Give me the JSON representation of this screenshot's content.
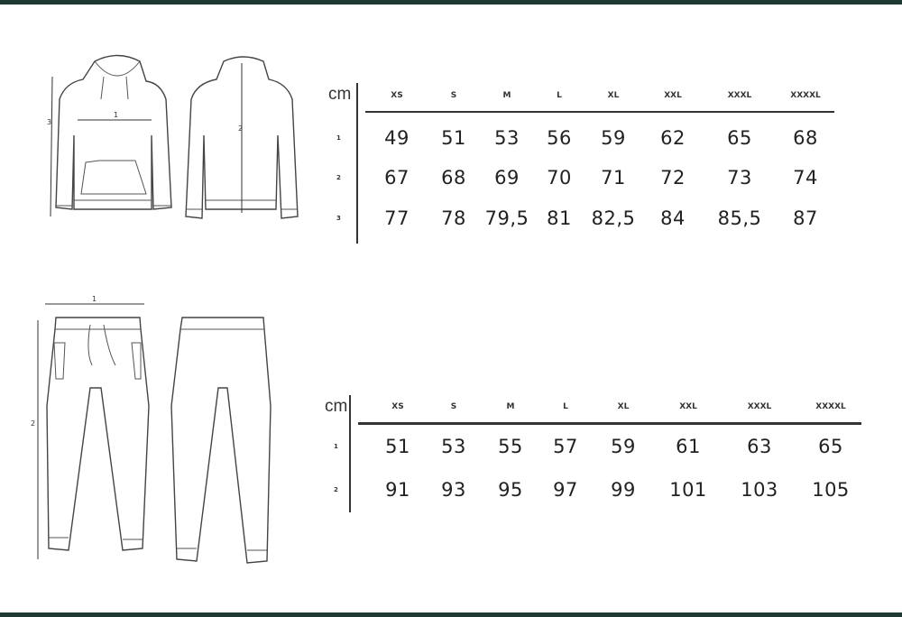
{
  "hoodie_chart": {
    "unit": "cm",
    "sizes": [
      "XS",
      "S",
      "M",
      "L",
      "XL",
      "XXL",
      "XXXL",
      "XXXXL"
    ],
    "rows": [
      {
        "label": "1",
        "values": [
          "49",
          "51",
          "53",
          "56",
          "59",
          "62",
          "65",
          "68"
        ]
      },
      {
        "label": "2",
        "values": [
          "67",
          "68",
          "69",
          "70",
          "71",
          "72",
          "73",
          "74"
        ]
      },
      {
        "label": "3",
        "values": [
          "77",
          "78",
          "79,5",
          "81",
          "82,5",
          "84",
          "85,5",
          "87"
        ]
      }
    ],
    "diagram_labels": [
      "1",
      "2",
      "3"
    ]
  },
  "pants_chart": {
    "unit": "cm",
    "sizes": [
      "XS",
      "S",
      "M",
      "L",
      "XL",
      "XXL",
      "XXXL",
      "XXXXL"
    ],
    "rows": [
      {
        "label": "1",
        "values": [
          "51",
          "53",
          "55",
          "57",
          "59",
          "61",
          "63",
          "65"
        ]
      },
      {
        "label": "2",
        "values": [
          "91",
          "93",
          "95",
          "97",
          "99",
          "101",
          "103",
          "105"
        ]
      }
    ],
    "diagram_labels": [
      "1",
      "2"
    ]
  },
  "colors": {
    "frame_bar": "#1e3a32",
    "text": "#222222"
  }
}
